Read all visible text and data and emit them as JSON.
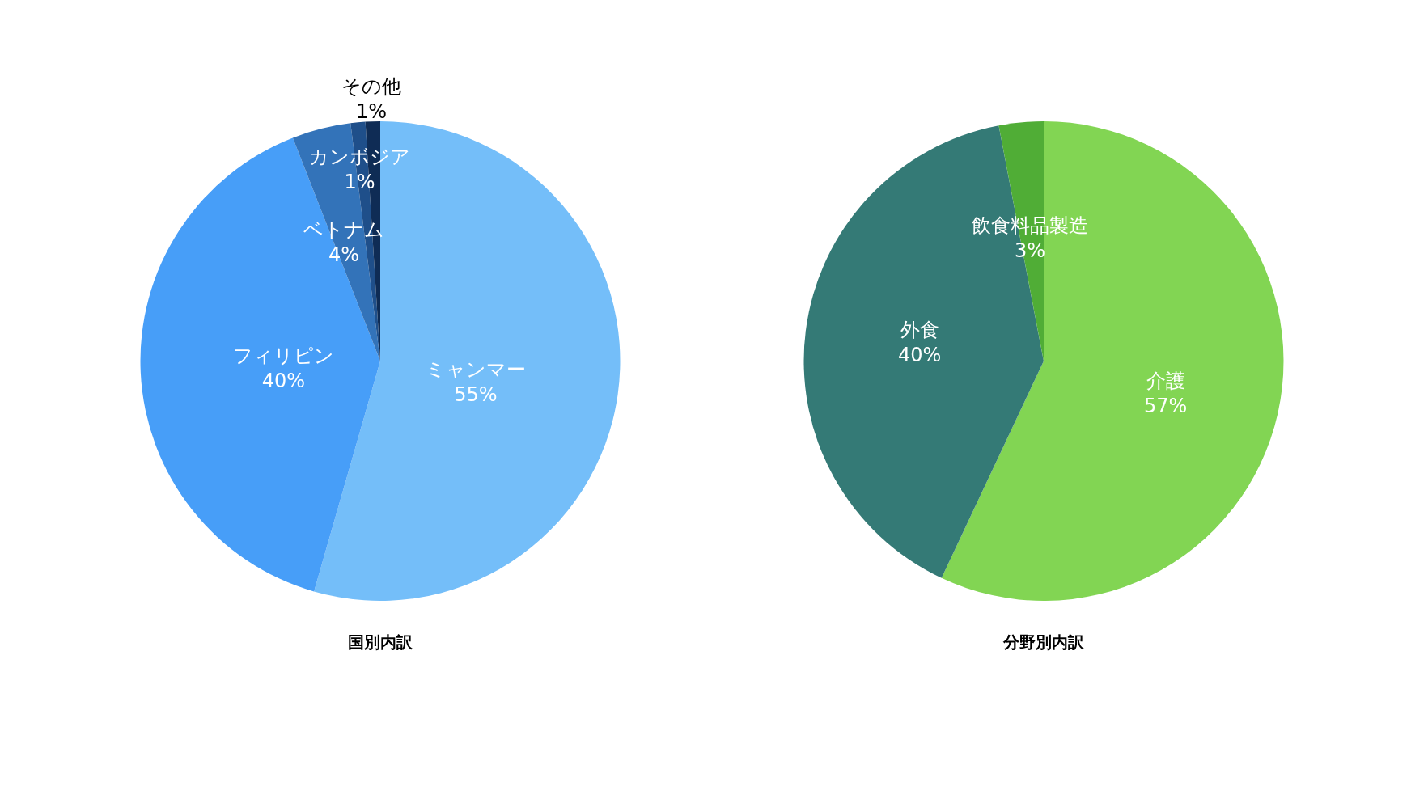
{
  "chart_data": [
    {
      "type": "pie",
      "title": "国別内訳",
      "categories": [
        "ミャンマー",
        "フィリピン",
        "ベトナム",
        "カンボジア",
        "その他"
      ],
      "values": [
        55,
        40,
        4,
        1,
        1
      ],
      "value_labels": [
        "55%",
        "40%",
        "4%",
        "1%",
        "1%"
      ],
      "colors": [
        "#74bef9",
        "#479ef8",
        "#3373b9",
        "#1f4f8a",
        "#0f2c55"
      ],
      "legend": false
    },
    {
      "type": "pie",
      "title": "分野別内訳",
      "categories": [
        "介護",
        "外食",
        "飲食料品製造"
      ],
      "values": [
        57,
        40,
        3
      ],
      "value_labels": [
        "57%",
        "40%",
        "3%"
      ],
      "colors": [
        "#82d553",
        "#347a76",
        "#50ad36"
      ],
      "legend": false
    }
  ]
}
